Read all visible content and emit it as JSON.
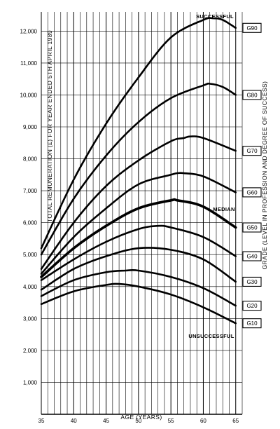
{
  "chart_data": {
    "type": "line",
    "xlabel": "AGE (YEARS)",
    "ylabel": "TOTAL REMUNERATION (£) FOR YEAR ENDED 5TH APRIL 1989",
    "right_label": "GRADE (LEVEL IN PROFESSION AND DEGREE OF SUCCESS)",
    "xlim": [
      35,
      66
    ],
    "ylim": [
      0,
      12600
    ],
    "x_ticks": [
      35,
      40,
      45,
      50,
      55,
      60,
      65
    ],
    "x_tick_labels": [
      "35",
      "40",
      "45",
      "50",
      "55",
      "60",
      "65"
    ],
    "y_ticks": [
      1000,
      2000,
      3000,
      4000,
      5000,
      6000,
      7000,
      8000,
      9000,
      10000,
      11000,
      12000
    ],
    "y_tick_labels": [
      "1,000",
      "2,000",
      "3,000",
      "4,000",
      "5,000",
      "6,000",
      "7,000",
      "8,000",
      "9,000",
      "10,000",
      "11,000",
      "12,000"
    ],
    "grid": true,
    "annotations": {
      "top": "SUCCESSFUL",
      "median": "MEDIAN",
      "bottom": "UNSUCCESSFUL"
    },
    "series": [
      {
        "name": "G90",
        "x": [
          35,
          40,
          45,
          50,
          55,
          60,
          61.5,
          63,
          65
        ],
        "y": [
          5200,
          7350,
          9100,
          10550,
          11800,
          12350,
          12400,
          12350,
          12100
        ]
      },
      {
        "name": "G80",
        "x": [
          35,
          40,
          45,
          50,
          55,
          60,
          61,
          63,
          65
        ],
        "y": [
          5000,
          6750,
          8100,
          9150,
          9900,
          10300,
          10350,
          10250,
          10000
        ]
      },
      {
        "name": "G70",
        "x": [
          35,
          40,
          45,
          50,
          55,
          57,
          58,
          60,
          65
        ],
        "y": [
          4550,
          6000,
          7150,
          7950,
          8550,
          8650,
          8700,
          8650,
          8250
        ]
      },
      {
        "name": "G60",
        "x": [
          35,
          40,
          45,
          50,
          55,
          56,
          57,
          60,
          65
        ],
        "y": [
          4400,
          5550,
          6450,
          7200,
          7500,
          7550,
          7550,
          7450,
          6950
        ]
      },
      {
        "name": "G50",
        "x": [
          35,
          40,
          45,
          50,
          55,
          56,
          60,
          65
        ],
        "y": [
          4300,
          5200,
          5900,
          6450,
          6700,
          6700,
          6500,
          5850
        ]
      },
      {
        "name": "G40",
        "x": [
          35,
          40,
          45,
          50,
          53,
          55,
          60,
          65
        ],
        "y": [
          4200,
          4850,
          5400,
          5800,
          5900,
          5850,
          5550,
          4950
        ]
      },
      {
        "name": "G30",
        "x": [
          35,
          40,
          45,
          50,
          55,
          60,
          65
        ],
        "y": [
          3900,
          4550,
          4950,
          5200,
          5150,
          4850,
          4150
        ]
      },
      {
        "name": "G20",
        "x": [
          35,
          40,
          45,
          48,
          50,
          55,
          60,
          65
        ],
        "y": [
          3700,
          4200,
          4450,
          4500,
          4500,
          4300,
          3950,
          3400
        ]
      },
      {
        "name": "G10",
        "x": [
          35,
          40,
          45,
          47,
          50,
          55,
          60,
          65
        ],
        "y": [
          3450,
          3850,
          4050,
          4080,
          4000,
          3750,
          3350,
          2850
        ]
      }
    ]
  }
}
